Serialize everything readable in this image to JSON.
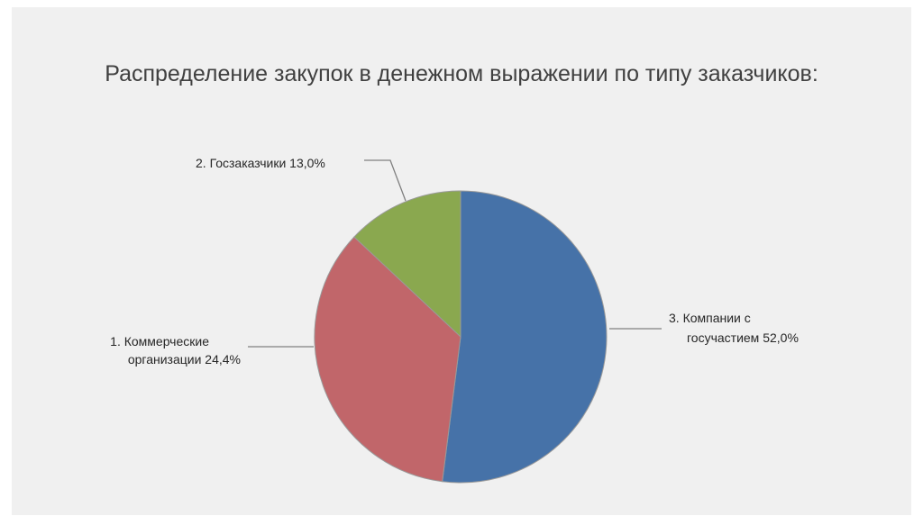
{
  "title": "Распределение закупок в денежном выражении по типу заказчиков:",
  "chart_data": {
    "type": "pie",
    "title": "Распределение закупок в денежном выражении по типу заказчиков:",
    "slices": [
      {
        "name": "Компании с госучастием",
        "value": 52.0,
        "color": "#4672a8",
        "label_lines": [
          "3. Компании с",
          "госучастием 52,0%"
        ]
      },
      {
        "name": "Коммерческие организации",
        "value": 24.4,
        "color": "#c1666a",
        "label_lines": [
          "1. Коммерческие",
          "организации 24,4%"
        ]
      },
      {
        "name": "Госзаказчики",
        "value": 13.0,
        "color": "#8aa84f",
        "label_lines": [
          "2. Госзаказчики 13,0%"
        ]
      }
    ],
    "start_angle_deg": 0,
    "direction": "clockwise",
    "legend": "none"
  }
}
